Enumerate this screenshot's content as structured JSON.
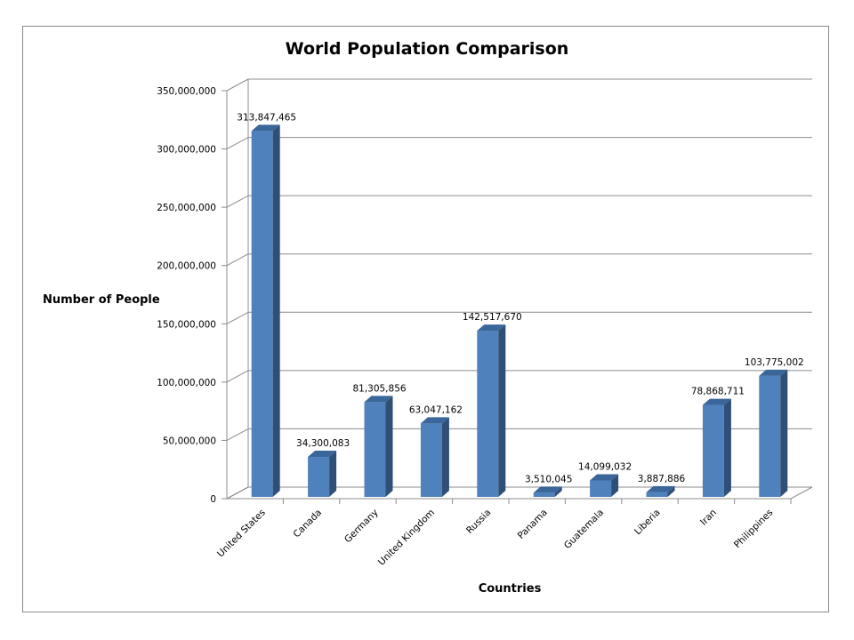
{
  "chart_data": {
    "type": "bar",
    "style": "3d-column",
    "title": "World Population Comparison",
    "xlabel": "Countries",
    "ylabel": "Number of People",
    "ylim": [
      0,
      350000000
    ],
    "ytick_values": [
      0,
      50000000,
      100000000,
      150000000,
      200000000,
      250000000,
      300000000,
      350000000
    ],
    "ytick_labels": [
      "0",
      "50,000,000",
      "100,000,000",
      "150,000,000",
      "200,000,000",
      "250,000,000",
      "300,000,000",
      "350,000,000"
    ],
    "grid": true,
    "legend": "none",
    "colors": {
      "bar_front": "#4f81bd",
      "bar_side": "#2f4f77",
      "bar_top": "#3a6699",
      "gridline": "#8c8c8c"
    },
    "categories": [
      "United States",
      "Canada",
      "Germany",
      "United Kingdom",
      "Russia",
      "Panama",
      "Guatemala",
      "Liberia",
      "Iran",
      "Philippines"
    ],
    "values": [
      313847465,
      34300083,
      81305856,
      63047162,
      142517670,
      3510045,
      14099032,
      3887886,
      78868711,
      103775002
    ],
    "data_labels": [
      "313,847,465",
      "34,300,083",
      "81,305,856",
      "63,047,162",
      "142,517,670",
      "3,510,045",
      "14,099,032",
      "3,887,886",
      "78,868,711",
      "103,775,002"
    ]
  }
}
